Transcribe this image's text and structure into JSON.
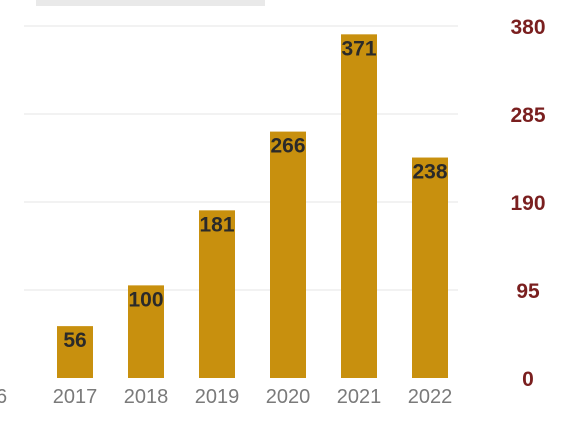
{
  "chart_data": {
    "type": "bar",
    "categories": [
      "2017",
      "2018",
      "2019",
      "2020",
      "2021",
      "2022"
    ],
    "values": [
      56,
      100,
      181,
      266,
      371,
      238
    ],
    "y_ticks": [
      0,
      95,
      190,
      285,
      380
    ],
    "ylim": [
      0,
      380
    ],
    "y_axis_side": "right",
    "partial_left_tick_label": "6",
    "grid": true,
    "colors": {
      "bar": "#c8900e",
      "y_tick_text": "#7a1f1f",
      "x_tick_text": "#7a7a7a",
      "data_label_text": "#2a2a2a",
      "grid": "#e6e6e6"
    }
  }
}
